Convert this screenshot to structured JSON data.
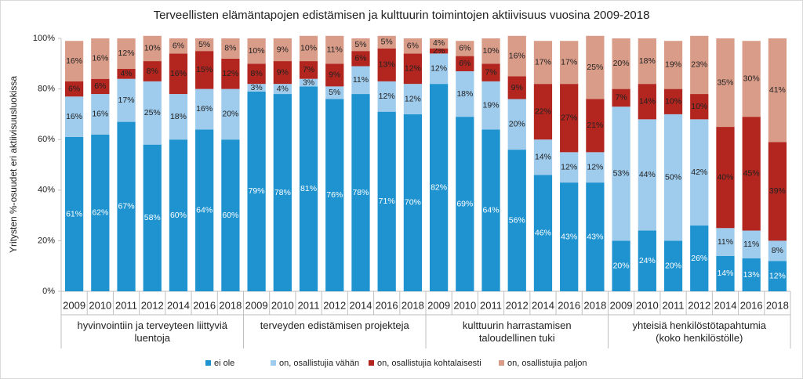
{
  "chart_data": {
    "type": "stacked_bar_100",
    "title": "Terveellisten elämäntapojen edistämisen ja kulttuurin toimintojen aktiivisuus vuosina 2009-2018",
    "y_label": "Yritysten %-osuudet eri aktiivisuusluokissa",
    "groups": [
      {
        "label": "hyvinvointiin ja terveyteen liittyviä luentoja",
        "categories": [
          "2009",
          "2010",
          "2011",
          "2012",
          "2014",
          "2016",
          "2018"
        ]
      },
      {
        "label": "terveyden edistämisen projekteja",
        "categories": [
          "2009",
          "2010",
          "2011",
          "2012",
          "2014",
          "2016",
          "2018"
        ]
      },
      {
        "label": "kulttuurin harrastamisen taloudellinen tuki",
        "categories": [
          "2009",
          "2010",
          "2011",
          "2012",
          "2014",
          "2016",
          "2018"
        ]
      },
      {
        "label": "yhteisiä henkilöstötapahtumia (koko henkilöstölle)",
        "categories": [
          "2009",
          "2010",
          "2011",
          "2012",
          "2014",
          "2016",
          "2018"
        ]
      }
    ],
    "series": [
      {
        "name": "ei ole",
        "color": "#1e93d0",
        "values": [
          61,
          62,
          67,
          58,
          60,
          64,
          60,
          79,
          78,
          81,
          76,
          78,
          71,
          70,
          82,
          69,
          64,
          56,
          46,
          43,
          43,
          20,
          24,
          20,
          26,
          14,
          13,
          12
        ],
        "value_labels": [
          "61%",
          "62%",
          "67%",
          "58%",
          "60%",
          "64%",
          "60%",
          "79%",
          "78%",
          "81%",
          "76%",
          "78%",
          "71%",
          "70%",
          "82%",
          "69%",
          "64%",
          "56%",
          "46%",
          "43%",
          "43%",
          "20%",
          "24%",
          "20%",
          "26%",
          "14%",
          "13%",
          "12%"
        ]
      },
      {
        "name": "on, osallistujia vähän",
        "color": "#9fcbec",
        "values": [
          16,
          16,
          17,
          25,
          18,
          16,
          20,
          3,
          4,
          3,
          5,
          11,
          12,
          12,
          12,
          18,
          19,
          20,
          14,
          12,
          12,
          53,
          44,
          50,
          42,
          11,
          11,
          8
        ],
        "value_labels": [
          "16%",
          "16%",
          "17%",
          "25%",
          "18%",
          "16%",
          "20%",
          "3%",
          "4%",
          "3%",
          "5%",
          "11%",
          "12%",
          "12%",
          "12%",
          "18%",
          "19%",
          "20%",
          "14%",
          "12%",
          "12%",
          "53%",
          "44%",
          "50%",
          "42%",
          "11%",
          "11%",
          "8%"
        ]
      },
      {
        "name": "on, osallistujia kohtalaisesti",
        "color": "#b2261f",
        "values": [
          6,
          6,
          4,
          8,
          16,
          15,
          12,
          8,
          9,
          7,
          9,
          6,
          13,
          12,
          2,
          6,
          7,
          9,
          22,
          27,
          21,
          7,
          14,
          10,
          10,
          40,
          45,
          39
        ],
        "value_labels": [
          "6%",
          "6%",
          "4%",
          "8%",
          "16%",
          "15%",
          "12%",
          "8%",
          "9%",
          "7%",
          "9%",
          "6%",
          "13%",
          "12%",
          "2%",
          "6%",
          "7%",
          "9%",
          "22%",
          "27%",
          "21%",
          "7%",
          "14%",
          "10%",
          "10%",
          "40%",
          "45%",
          "39%"
        ]
      },
      {
        "name": "on, osallistujia paljon",
        "color": "#d99c88",
        "values": [
          16,
          16,
          12,
          10,
          6,
          5,
          8,
          10,
          9,
          10,
          11,
          5,
          5,
          6,
          4,
          6,
          10,
          16,
          17,
          17,
          25,
          20,
          18,
          19,
          23,
          35,
          30,
          41
        ],
        "value_labels": [
          "16%",
          "16%",
          "12%",
          "10%",
          "6%",
          "5%",
          "8%",
          "10%",
          "9%",
          "10%",
          "11%",
          "5%",
          "5%",
          "6%",
          "4%",
          "6%",
          "10%",
          "16%",
          "17%",
          "17%",
          "25%",
          "20%",
          "18%",
          "19%",
          "23%",
          "35%",
          "30%",
          "41%"
        ]
      }
    ],
    "ylim": [
      0,
      100
    ],
    "yticks": [
      {
        "value": 0,
        "label": "0%"
      },
      {
        "value": 20,
        "label": "20%"
      },
      {
        "value": 40,
        "label": "40%"
      },
      {
        "value": 60,
        "label": "60%"
      },
      {
        "value": 80,
        "label": "80%"
      },
      {
        "value": 100,
        "label": "100%"
      }
    ],
    "legend": "bottom"
  }
}
